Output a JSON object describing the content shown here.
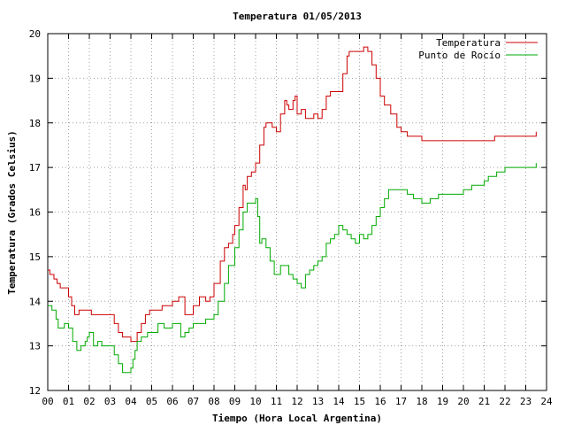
{
  "chart_data": {
    "type": "line",
    "title": "Temperatura 01/05/2013",
    "xlabel": "Tiempo (Hora Local Argentina)",
    "ylabel": "Temperatura (Grados Celsius)",
    "xlim": [
      0,
      24
    ],
    "ylim": [
      12,
      20
    ],
    "x_ticks": [
      0,
      1,
      2,
      3,
      4,
      5,
      6,
      7,
      8,
      9,
      10,
      11,
      12,
      13,
      14,
      15,
      16,
      17,
      18,
      19,
      20,
      21,
      22,
      23,
      24
    ],
    "x_tick_labels": [
      "00",
      "01",
      "02",
      "03",
      "04",
      "05",
      "06",
      "07",
      "08",
      "09",
      "10",
      "11",
      "12",
      "13",
      "14",
      "15",
      "16",
      "17",
      "18",
      "19",
      "20",
      "21",
      "22",
      "23",
      "24"
    ],
    "y_ticks": [
      12,
      13,
      14,
      15,
      16,
      17,
      18,
      19,
      20
    ],
    "y_tick_labels": [
      "12",
      "13",
      "14",
      "15",
      "16",
      "17",
      "18",
      "19",
      "20"
    ],
    "grid": true,
    "legend_position": "top-right",
    "series": [
      {
        "name": "Temperatura",
        "color": "#cc0000",
        "x": [
          0,
          0.1,
          0.3,
          0.45,
          0.6,
          1.0,
          1.15,
          1.3,
          1.5,
          1.8,
          2.0,
          2.1,
          2.3,
          3.0,
          3.2,
          3.4,
          3.6,
          4.0,
          4.1,
          4.3,
          4.5,
          4.7,
          4.9,
          5.0,
          5.5,
          6.0,
          6.3,
          6.6,
          6.8,
          7.0,
          7.3,
          7.6,
          7.8,
          8.0,
          8.3,
          8.5,
          8.7,
          8.9,
          9.0,
          9.2,
          9.4,
          9.5,
          9.6,
          9.8,
          10.0,
          10.2,
          10.4,
          10.5,
          10.6,
          10.8,
          11.0,
          11.2,
          11.4,
          11.5,
          11.6,
          11.8,
          11.9,
          12.0,
          12.2,
          12.4,
          12.6,
          12.8,
          13.0,
          13.2,
          13.4,
          13.6,
          13.8,
          14.0,
          14.2,
          14.4,
          14.5,
          14.7,
          15.0,
          15.2,
          15.4,
          15.6,
          15.8,
          16.0,
          16.2,
          16.5,
          16.8,
          17.0,
          17.3,
          17.6,
          18.0,
          18.5,
          19.0,
          19.5,
          20.0,
          20.5,
          21.0,
          21.5,
          22.0,
          22.5,
          23.0,
          23.5
        ],
        "y": [
          14.7,
          14.6,
          14.5,
          14.4,
          14.3,
          14.1,
          13.9,
          13.7,
          13.8,
          13.8,
          13.8,
          13.7,
          13.7,
          13.7,
          13.5,
          13.3,
          13.2,
          13.1,
          13.1,
          13.3,
          13.5,
          13.7,
          13.8,
          13.8,
          13.9,
          14.0,
          14.1,
          13.7,
          13.7,
          13.9,
          14.1,
          14.0,
          14.1,
          14.4,
          14.9,
          15.2,
          15.3,
          15.5,
          15.7,
          16.1,
          16.6,
          16.5,
          16.8,
          16.9,
          17.1,
          17.5,
          17.9,
          18.0,
          18.0,
          17.9,
          17.8,
          18.2,
          18.5,
          18.4,
          18.3,
          18.5,
          18.6,
          18.2,
          18.3,
          18.1,
          18.1,
          18.2,
          18.1,
          18.3,
          18.6,
          18.7,
          18.7,
          18.7,
          19.1,
          19.5,
          19.6,
          19.6,
          19.6,
          19.7,
          19.6,
          19.3,
          19.0,
          18.6,
          18.4,
          18.2,
          17.9,
          17.8,
          17.7,
          17.7,
          17.6,
          17.6,
          17.6,
          17.6,
          17.6,
          17.6,
          17.6,
          17.7,
          17.7,
          17.7,
          17.7,
          17.8
        ]
      },
      {
        "name": "Punto de Rocío",
        "color": "#00aa00",
        "x": [
          0,
          0.2,
          0.4,
          0.5,
          0.8,
          1.0,
          1.2,
          1.4,
          1.6,
          1.8,
          1.9,
          2.0,
          2.2,
          2.4,
          2.6,
          2.8,
          3.0,
          3.2,
          3.4,
          3.6,
          3.8,
          4.0,
          4.1,
          4.2,
          4.3,
          4.5,
          4.8,
          5.0,
          5.3,
          5.6,
          6.0,
          6.2,
          6.4,
          6.6,
          6.8,
          7.0,
          7.3,
          7.6,
          7.9,
          8.0,
          8.2,
          8.5,
          8.7,
          9.0,
          9.2,
          9.4,
          9.6,
          9.8,
          10.0,
          10.1,
          10.2,
          10.3,
          10.5,
          10.7,
          10.9,
          11.0,
          11.2,
          11.4,
          11.6,
          11.8,
          12.0,
          12.2,
          12.4,
          12.6,
          12.8,
          13.0,
          13.2,
          13.4,
          13.6,
          13.8,
          14.0,
          14.2,
          14.4,
          14.6,
          14.8,
          15.0,
          15.2,
          15.4,
          15.6,
          15.8,
          16.0,
          16.2,
          16.4,
          16.6,
          16.8,
          17.0,
          17.3,
          17.6,
          18.0,
          18.4,
          18.8,
          19.2,
          19.6,
          20.0,
          20.4,
          20.8,
          21.0,
          21.2,
          21.6,
          22.0,
          22.5,
          23.0,
          23.5
        ],
        "y": [
          13.9,
          13.8,
          13.6,
          13.4,
          13.5,
          13.4,
          13.1,
          12.9,
          13.0,
          13.1,
          13.2,
          13.3,
          13.0,
          13.1,
          13.0,
          13.0,
          13.0,
          12.8,
          12.6,
          12.4,
          12.4,
          12.5,
          12.7,
          12.9,
          13.1,
          13.2,
          13.3,
          13.3,
          13.5,
          13.4,
          13.5,
          13.5,
          13.2,
          13.3,
          13.4,
          13.5,
          13.5,
          13.6,
          13.6,
          13.7,
          14.0,
          14.4,
          14.8,
          15.2,
          15.6,
          16.0,
          16.2,
          16.2,
          16.3,
          15.9,
          15.3,
          15.4,
          15.2,
          14.9,
          14.6,
          14.6,
          14.8,
          14.8,
          14.6,
          14.5,
          14.4,
          14.3,
          14.6,
          14.7,
          14.8,
          14.9,
          15.0,
          15.3,
          15.4,
          15.5,
          15.7,
          15.6,
          15.5,
          15.4,
          15.3,
          15.5,
          15.4,
          15.5,
          15.7,
          15.9,
          16.1,
          16.3,
          16.5,
          16.5,
          16.5,
          16.5,
          16.4,
          16.3,
          16.2,
          16.3,
          16.4,
          16.4,
          16.4,
          16.5,
          16.6,
          16.6,
          16.7,
          16.8,
          16.9,
          17.0,
          17.0,
          17.0,
          17.1
        ]
      }
    ]
  }
}
